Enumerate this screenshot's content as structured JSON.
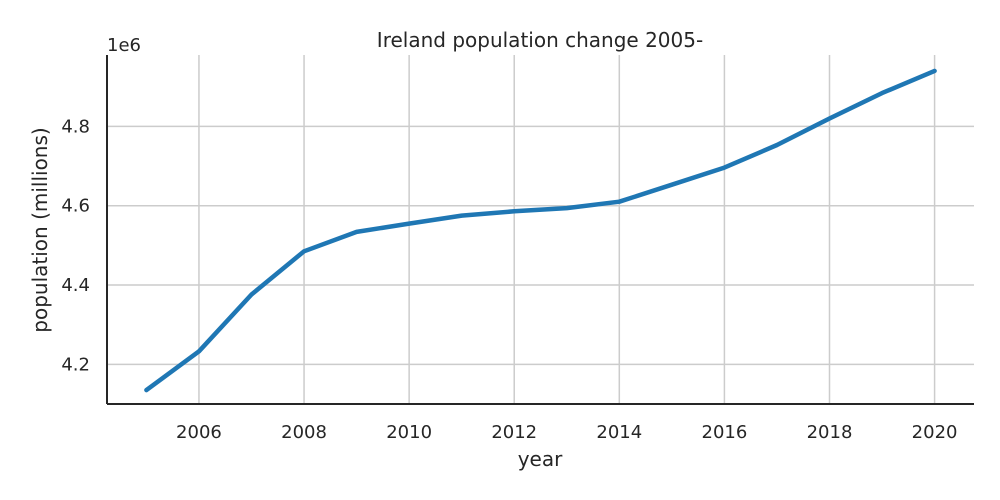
{
  "chart_data": {
    "type": "line",
    "title": "Ireland population change 2005-",
    "xlabel": "year",
    "ylabel": "population (millions)",
    "y_offset_label": "1e6",
    "xlim": [
      2004.25,
      2020.75
    ],
    "ylim": [
      4100000,
      4980000
    ],
    "xticks": [
      2006,
      2008,
      2010,
      2012,
      2014,
      2016,
      2018,
      2020
    ],
    "yticks": [
      4200000,
      4400000,
      4600000,
      4800000
    ],
    "ytick_labels": [
      "4.2",
      "4.4",
      "4.6",
      "4.8"
    ],
    "grid": true,
    "line_color": "#1f77b4",
    "series": [
      {
        "x": [
          2005,
          2006,
          2007,
          2008,
          2009,
          2010,
          2011,
          2012,
          2013,
          2014,
          2015,
          2016,
          2017,
          2018,
          2019,
          2020
        ],
        "y": [
          4135000,
          4233000,
          4376000,
          4485000,
          4534000,
          4555000,
          4575000,
          4586000,
          4594000,
          4610000,
          4653000,
          4696000,
          4753000,
          4820000,
          4884000,
          4940000
        ]
      }
    ]
  }
}
